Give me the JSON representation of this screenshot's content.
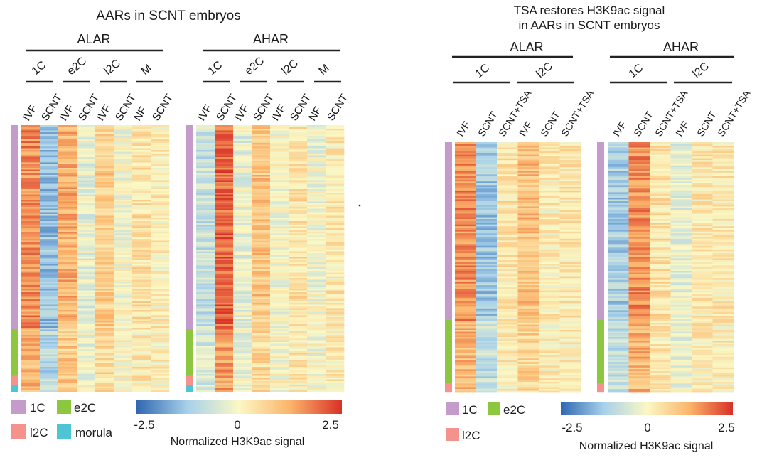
{
  "chart_data": [
    {
      "type": "heatmap",
      "title": "AARs in SCNT embryos",
      "groups": [
        {
          "name": "ALAR",
          "stages": [
            "1C",
            "e2C",
            "l2C",
            "M"
          ],
          "columns": [
            "IVF",
            "SCNT",
            "IVF",
            "SCNT",
            "IVF",
            "SCNT",
            "NF",
            "SCNT"
          ],
          "column_mean_values": [
            1.6,
            -1.4,
            1.2,
            -0.3,
            0.8,
            -0.1,
            0.4,
            0.2
          ]
        },
        {
          "name": "AHAR",
          "stages": [
            "1C",
            "e2C",
            "l2C",
            "M"
          ],
          "columns": [
            "IVF",
            "SCNT",
            "IVF",
            "SCNT",
            "IVF",
            "SCNT",
            "NF",
            "SCNT"
          ],
          "column_mean_values": [
            -0.8,
            2.0,
            -0.3,
            0.9,
            -0.1,
            0.4,
            -0.2,
            0.3
          ]
        }
      ],
      "row_clusters": [
        {
          "label": "1C",
          "fraction": 0.765,
          "color": "#c49bcb"
        },
        {
          "label": "e2C",
          "fraction": 0.175,
          "color": "#8dc63f"
        },
        {
          "label": "l2C",
          "fraction": 0.035,
          "color": "#f4928b"
        },
        {
          "label": "morula",
          "fraction": 0.025,
          "color": "#4ec5d4"
        }
      ],
      "colorbar": {
        "label": "Normalized H3K9ac signal",
        "min": -2.5,
        "mid": 0,
        "max": 2.5,
        "ticks": [
          "-2.5",
          "0",
          "2.5"
        ]
      },
      "legend": {
        "items": [
          "1C",
          "e2C",
          "l2C",
          "morula"
        ]
      }
    },
    {
      "type": "heatmap",
      "title": "TSA restores H3K9ac signal in AARs in SCNT embryos",
      "title_lines": [
        "TSA restores H3K9ac signal",
        "in AARs in SCNT embryos"
      ],
      "groups": [
        {
          "name": "ALAR",
          "stages": [
            "1C",
            "l2C"
          ],
          "columns": [
            "IVF",
            "SCNT",
            "SCNT+TSA",
            "IVF",
            "SCNT",
            "SCNT+TSA"
          ],
          "column_mean_values": [
            1.6,
            -1.3,
            0.3,
            1.0,
            0.2,
            0.3
          ]
        },
        {
          "name": "AHAR",
          "stages": [
            "1C",
            "l2C"
          ],
          "columns": [
            "IVF",
            "SCNT",
            "SCNT+TSA",
            "IVF",
            "SCNT",
            "SCNT+TSA"
          ],
          "column_mean_values": [
            -1.2,
            1.6,
            0.4,
            -0.3,
            0.3,
            0.3
          ]
        }
      ],
      "row_clusters": [
        {
          "label": "1C",
          "fraction": 0.71,
          "color": "#c49bcb"
        },
        {
          "label": "e2C",
          "fraction": 0.25,
          "color": "#8dc63f"
        },
        {
          "label": "l2C",
          "fraction": 0.04,
          "color": "#f4928b"
        }
      ],
      "colorbar": {
        "label": "Normalized H3K9ac signal",
        "min": -2.5,
        "mid": 0,
        "max": 2.5,
        "ticks": [
          "-2.5",
          "0",
          "2.5"
        ]
      },
      "legend": {
        "items": [
          "1C",
          "e2C",
          "l2C"
        ]
      }
    }
  ],
  "colors": {
    "scale": [
      "#2f67b1",
      "#a8d1ea",
      "#fbf8c4",
      "#fbb46a",
      "#d93027"
    ],
    "text": "#1a1a1a",
    "rule": "#222222"
  }
}
